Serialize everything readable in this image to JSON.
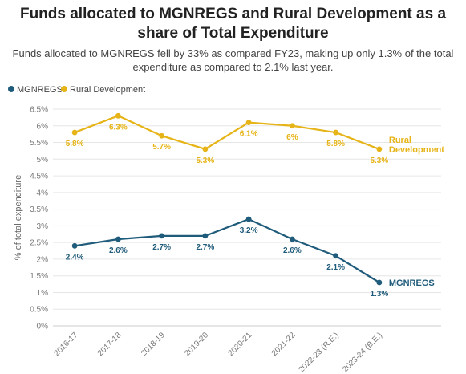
{
  "title": "Funds allocated to MGNREGS and Rural Development as a share of Total Expenditure",
  "subtitle": "Funds allocated to MGNREGS fell by 33% as compared FY23, making up only 1.3% of the total expenditure as compared to 2.1% last year.",
  "colors": {
    "mgnregs": "#1f5b7a",
    "rural": "#e6b416",
    "grid": "#e6e6e6"
  },
  "chart_data": {
    "type": "line",
    "categories": [
      "2016-17",
      "2017-18",
      "2018-19",
      "2019-20",
      "2020-21",
      "2021-22",
      "2022-23 (R.E.)",
      "2023-24 (B.E.)"
    ],
    "series": [
      {
        "name": "MGNREGS",
        "values": [
          2.4,
          2.6,
          2.7,
          2.7,
          3.2,
          2.6,
          2.1,
          1.3
        ],
        "labels": [
          "2.4%",
          "2.6%",
          "2.7%",
          "2.7%",
          "3.2%",
          "2.6%",
          "2.1%",
          "1.3%"
        ],
        "end_label": "MGNREGS"
      },
      {
        "name": "Rural Development",
        "values": [
          5.8,
          6.3,
          5.7,
          5.3,
          6.1,
          6.0,
          5.8,
          5.3
        ],
        "labels": [
          "5.8%",
          "6.3%",
          "5.7%",
          "5.3%",
          "6.1%",
          "6%",
          "5.8%",
          "5.3%"
        ],
        "end_label": "Rural Development"
      }
    ],
    "ylabel": "% of total expenditure",
    "yticks": [
      "0%",
      "0.5%",
      "1%",
      "1.5%",
      "2%",
      "2.5%",
      "3%",
      "3.5%",
      "4%",
      "4.5%",
      "5%",
      "5.5%",
      "6%",
      "6.5%"
    ],
    "ylim": [
      0,
      6.5
    ],
    "grid": true,
    "legend_position": "top-left"
  }
}
